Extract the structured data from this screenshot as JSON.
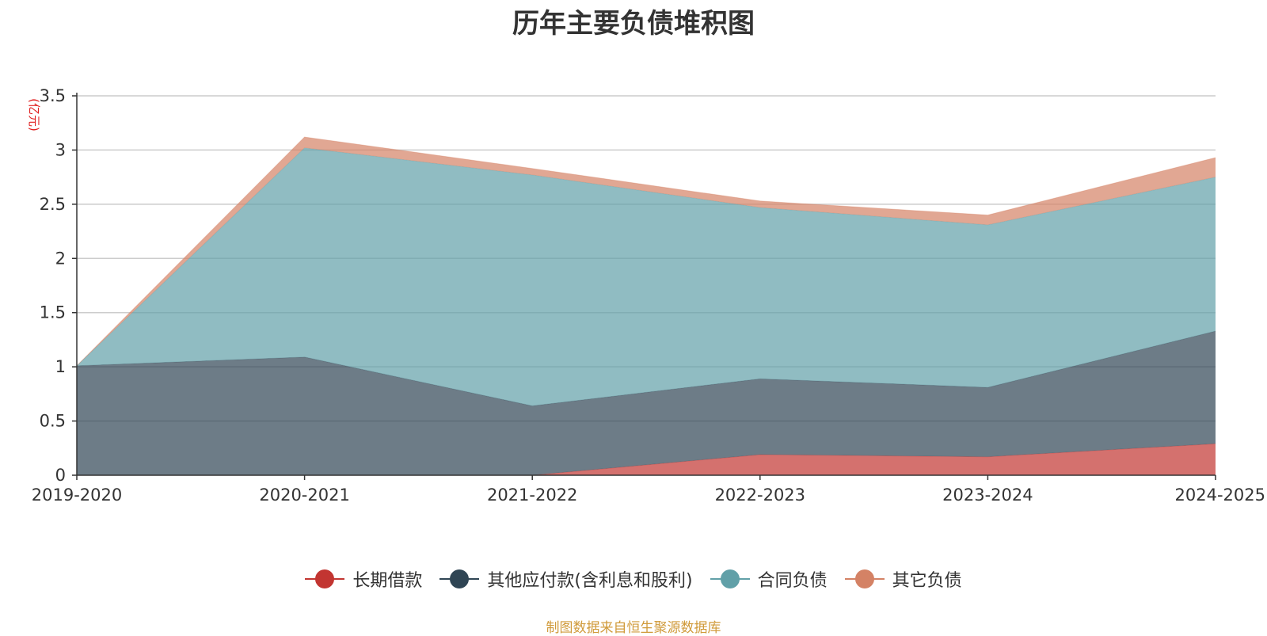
{
  "chart_data": {
    "type": "area",
    "stacked": true,
    "title": "历年主要负债堆积图",
    "unit_label": "(亿元)",
    "categories": [
      "2019-2020",
      "2020-2021",
      "2021-2022",
      "2022-2023",
      "2023-2024",
      "2024-2025"
    ],
    "ylim": [
      0,
      3.5
    ],
    "yticks": [
      "0",
      "0.5",
      "1",
      "1.5",
      "2",
      "2.5",
      "3",
      "3.5"
    ],
    "grid": true,
    "legend_position": "bottom",
    "series": [
      {
        "name": "长期借款",
        "color": "#c23531",
        "values": [
          0,
          0,
          0,
          0.19,
          0.17,
          0.29
        ]
      },
      {
        "name": "其他应付款(含利息和股利)",
        "color": "#2f4554",
        "values": [
          1.01,
          1.09,
          0.64,
          0.7,
          0.64,
          1.04
        ]
      },
      {
        "name": "合同负债",
        "color": "#61a0a8",
        "values": [
          0,
          1.93,
          2.13,
          1.58,
          1.5,
          1.42
        ]
      },
      {
        "name": "其它负债",
        "color": "#d48265",
        "values": [
          0,
          0.1,
          0.06,
          0.06,
          0.09,
          0.18
        ]
      }
    ]
  },
  "source_note": "制图数据来自恒生聚源数据库",
  "colors": {
    "axis_unit": "#e02020",
    "grid": "#cccccc",
    "source": "#d09a3a"
  }
}
